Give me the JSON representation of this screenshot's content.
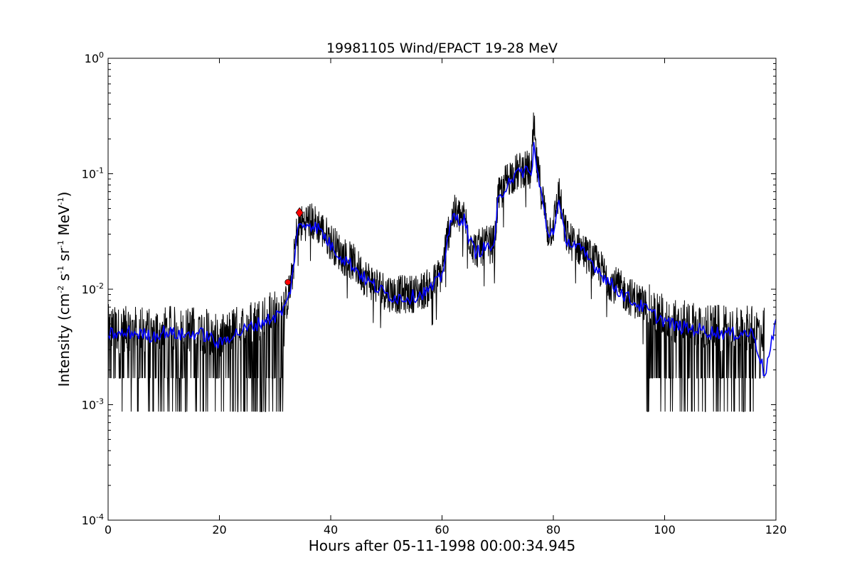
{
  "chart_data": {
    "type": "line",
    "title": "19981105 Wind/EPACT 19-28 MeV",
    "xlabel": "Hours after 05-11-1998 00:00:34.945",
    "ylabel": {
      "prefix": "Intensity (cm",
      "e1": "-2",
      "s": " s",
      "e2": "-1",
      "sr": " sr",
      "e3": "-1",
      "mev": " MeV",
      "e4": "-1",
      "suffix": ")"
    },
    "yscale": "log",
    "xlim": [
      0,
      120
    ],
    "ylim": [
      0.0001,
      1
    ],
    "grid": false,
    "x_ticks": [
      "0",
      "20",
      "40",
      "60",
      "80",
      "100",
      "120"
    ],
    "y_ticks": [
      {
        "base": "10",
        "exp": "-4"
      },
      {
        "base": "10",
        "exp": "-3"
      },
      {
        "base": "10",
        "exp": "-2"
      },
      {
        "base": "10",
        "exp": "-1"
      },
      {
        "base": "10",
        "exp": "0"
      }
    ],
    "colors": {
      "raw": "#000000",
      "smoothed": "#0000ff",
      "markers": "#ff0000"
    },
    "series": [
      {
        "style": "raw",
        "color": "#000000",
        "x": [
          0,
          2,
          4,
          6,
          8,
          10,
          12,
          14,
          16,
          18,
          20,
          22,
          24,
          26,
          28,
          30,
          31,
          32,
          33,
          34,
          36,
          38,
          40,
          42,
          44,
          46,
          48,
          50,
          52,
          54,
          56,
          58,
          60,
          61,
          62,
          64,
          65,
          66,
          68,
          69.5,
          70,
          72,
          74,
          75,
          76,
          76.5,
          77,
          78,
          79,
          80,
          81,
          82,
          83,
          84,
          86,
          88,
          90,
          92,
          94,
          96,
          98,
          100,
          102,
          104,
          106,
          108,
          110,
          112,
          114,
          116,
          118
        ],
        "y": [
          0.0045,
          0.0042,
          0.0044,
          0.0043,
          0.0041,
          0.0045,
          0.0043,
          0.0042,
          0.0044,
          0.0041,
          0.0035,
          0.0042,
          0.0045,
          0.005,
          0.0055,
          0.006,
          0.0065,
          0.0075,
          0.012,
          0.035,
          0.04,
          0.035,
          0.026,
          0.02,
          0.017,
          0.013,
          0.011,
          0.0095,
          0.009,
          0.009,
          0.0095,
          0.0105,
          0.014,
          0.03,
          0.045,
          0.042,
          0.028,
          0.022,
          0.024,
          0.025,
          0.06,
          0.095,
          0.105,
          0.115,
          0.1,
          0.26,
          0.12,
          0.065,
          0.032,
          0.035,
          0.07,
          0.032,
          0.026,
          0.025,
          0.02,
          0.016,
          0.012,
          0.01,
          0.0085,
          0.0075,
          0.0062,
          0.0055,
          0.005,
          0.0048,
          0.0047,
          0.0045,
          0.0044,
          0.0043,
          0.0044,
          0.0043,
          0.0042
        ]
      },
      {
        "style": "smoothed",
        "color": "#0000ff",
        "x": [
          0,
          2,
          4,
          6,
          8,
          10,
          12,
          14,
          16,
          18,
          20,
          22,
          24,
          26,
          28,
          30,
          31,
          32,
          33,
          34,
          36,
          38,
          40,
          42,
          44,
          46,
          48,
          50,
          52,
          54,
          56,
          58,
          60,
          61,
          62,
          64,
          65,
          66,
          68,
          69.5,
          70,
          72,
          74,
          75,
          76,
          76.5,
          77,
          78,
          79,
          80,
          81,
          82,
          83,
          84,
          86,
          88,
          90,
          92,
          94,
          96,
          98,
          100,
          102,
          104,
          106,
          108,
          110,
          112,
          114,
          116,
          118,
          120
        ],
        "y": [
          0.0042,
          0.004,
          0.0042,
          0.0041,
          0.0039,
          0.0043,
          0.0041,
          0.004,
          0.0042,
          0.0039,
          0.0033,
          0.004,
          0.0043,
          0.0048,
          0.0053,
          0.0058,
          0.0062,
          0.0072,
          0.0115,
          0.033,
          0.038,
          0.033,
          0.024,
          0.019,
          0.016,
          0.0125,
          0.0105,
          0.009,
          0.0085,
          0.0085,
          0.009,
          0.01,
          0.013,
          0.028,
          0.042,
          0.04,
          0.026,
          0.021,
          0.023,
          0.024,
          0.055,
          0.09,
          0.1,
          0.11,
          0.095,
          0.18,
          0.11,
          0.06,
          0.03,
          0.033,
          0.055,
          0.03,
          0.025,
          0.024,
          0.019,
          0.015,
          0.0115,
          0.0095,
          0.008,
          0.007,
          0.006,
          0.0053,
          0.0048,
          0.0046,
          0.0045,
          0.0043,
          0.0042,
          0.0041,
          0.0042,
          0.0041,
          0.0018,
          0.005
        ]
      }
    ],
    "markers": [
      {
        "x": 32.3,
        "y": 0.0115,
        "shape": "circle",
        "color": "#ff0000"
      },
      {
        "x": 34.4,
        "y": 0.046,
        "shape": "diamond",
        "color": "#ff0000"
      }
    ]
  }
}
